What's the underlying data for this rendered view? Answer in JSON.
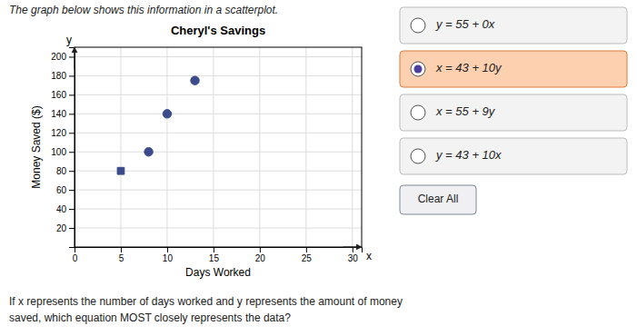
{
  "chart_data": {
    "type": "scatter",
    "title": "Cheryl's Savings",
    "xlabel": "Days Worked",
    "ylabel": "Money Saved ($)",
    "series": [
      {
        "x": [
          5
        ],
        "values": [
          80
        ],
        "marker": "square",
        "color": "#3a4a8a"
      },
      {
        "x": [
          8,
          10,
          13
        ],
        "values": [
          100,
          140,
          175
        ],
        "marker": "circle",
        "color": "#3a4a8a"
      }
    ],
    "xlim": [
      0,
      31
    ],
    "ylim": [
      0,
      210
    ],
    "xticks": [
      0,
      5,
      10,
      15,
      20,
      25,
      30
    ],
    "yticks": [
      20,
      40,
      60,
      80,
      100,
      120,
      140,
      160,
      180,
      200
    ],
    "grid": true,
    "x_arrow_label": "x",
    "y_arrow_label": "y",
    "annotations": [
      "The graph below shows this information in a scatterplot.",
      "If x represents the number of days worked and y represents the amount of money",
      "saved, which equation MOST closely represents the data?"
    ],
    "options": [
      {
        "text": "y = 55 + 0x",
        "selected": false
      },
      {
        "text": "x = 43 + 10y",
        "selected": true
      },
      {
        "text": "x = 55 + 9y",
        "selected": false
      },
      {
        "text": "y = 43 + 10x",
        "selected": false
      }
    ],
    "button": "Clear All"
  }
}
